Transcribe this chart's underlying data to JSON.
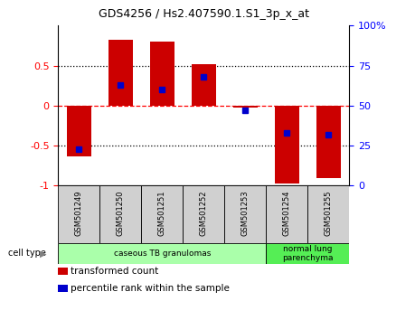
{
  "title": "GDS4256 / Hs2.407590.1.S1_3p_x_at",
  "samples": [
    "GSM501249",
    "GSM501250",
    "GSM501251",
    "GSM501252",
    "GSM501253",
    "GSM501254",
    "GSM501255"
  ],
  "red_values": [
    -0.63,
    0.82,
    0.8,
    0.52,
    -0.03,
    -0.97,
    -0.91
  ],
  "blue_values_pct": [
    23,
    63,
    60,
    68,
    47,
    33,
    32
  ],
  "cell_type_groups": [
    {
      "label": "caseous TB granulomas",
      "start": 0,
      "end": 5,
      "color": "#aaffaa"
    },
    {
      "label": "normal lung\nparenchyma",
      "start": 5,
      "end": 7,
      "color": "#55ee55"
    }
  ],
  "ylim_left": [
    -1,
    1
  ],
  "ylim_right": [
    0,
    100
  ],
  "yticks_left": [
    -1,
    -0.5,
    0,
    0.5
  ],
  "ytick_labels_left": [
    "-1",
    "-0.5",
    "0",
    "0.5"
  ],
  "yticks_right": [
    0,
    25,
    50,
    75,
    100
  ],
  "ytick_labels_right": [
    "0",
    "25",
    "50",
    "75",
    "100%"
  ],
  "hlines": [
    -0.5,
    0,
    0.5
  ],
  "hline_styles": [
    "dotted",
    "dashed",
    "dotted"
  ],
  "hline_colors": [
    "black",
    "red",
    "black"
  ],
  "bar_color": "#cc0000",
  "dot_color": "#0000cc",
  "legend_items": [
    {
      "label": "transformed count",
      "color": "#cc0000"
    },
    {
      "label": "percentile rank within the sample",
      "color": "#0000cc"
    }
  ],
  "cell_type_label": "cell type",
  "bar_width": 0.6,
  "dot_size": 18,
  "sample_box_color": "#d0d0d0",
  "title_fontsize": 9,
  "axis_fontsize": 8,
  "label_fontsize": 6,
  "legend_fontsize": 7.5
}
